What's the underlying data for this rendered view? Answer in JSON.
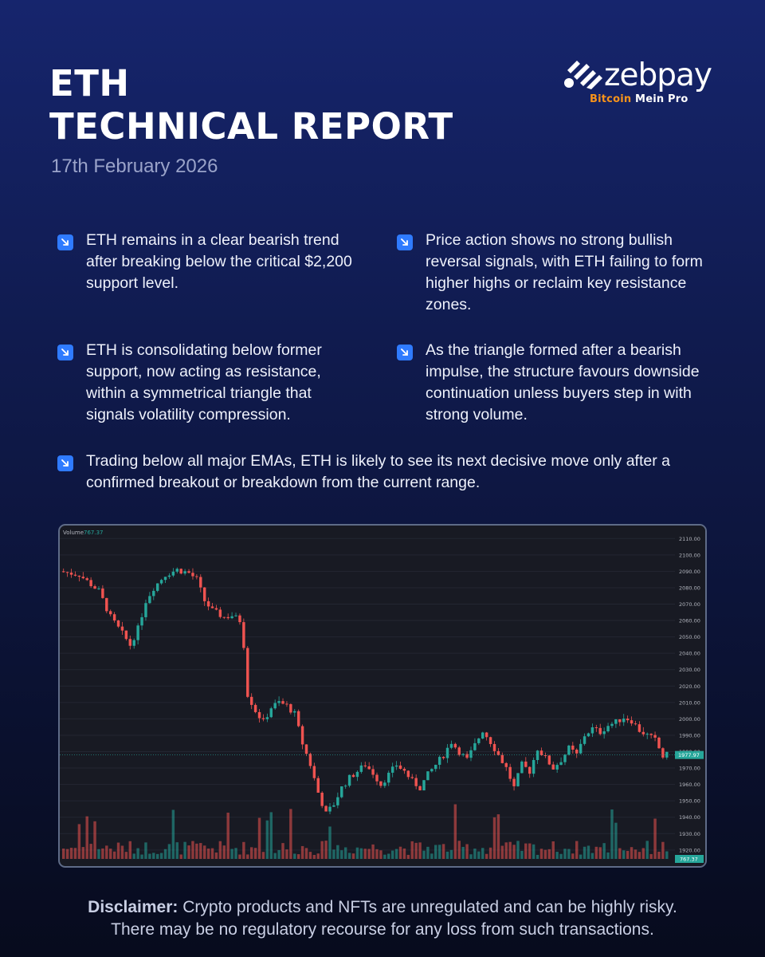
{
  "header": {
    "title_line1": "ETH",
    "title_line2": "TECHNICAL REPORT",
    "date": "17th February 2026"
  },
  "logo": {
    "wordmark": "zebpay",
    "tagline_prefix": "Bitcoin",
    "tagline_suffix": " Mein Pro"
  },
  "bullets": [
    {
      "icon": "arrow-down-right-icon",
      "text": "ETH remains in a clear bearish trend after breaking below the critical $2,200 support level."
    },
    {
      "icon": "arrow-down-right-icon",
      "text": "Price action shows no strong bullish reversal signals, with ETH failing to form higher highs or reclaim key resistance zones."
    },
    {
      "icon": "arrow-down-right-icon",
      "text": "ETH is consolidating below former support, now acting as resistance, within a symmetrical triangle that signals volatility compression."
    },
    {
      "icon": "arrow-down-right-icon",
      "text": "As the triangle formed after a bearish impulse, the structure favours downside continuation unless buyers step in with strong volume."
    },
    {
      "icon": "arrow-down-right-icon",
      "text": "Trading below all major EMAs, ETH is likely to see its next decisive move only after a confirmed breakout or breakdown from the current range."
    }
  ],
  "disclaimer": {
    "label": "Disclaimer:",
    "line1": " Crypto products and NFTs are unregulated and can be highly risky.",
    "line2": "There may be no regulatory recourse for any loss from such transactions."
  },
  "colors": {
    "up": "#26a69a",
    "down": "#ef5350",
    "accent": "#2f7bff",
    "orange": "#f7931a"
  },
  "chart_data": {
    "type": "candlestick",
    "y_ticks": [
      "2110.00",
      "2100.00",
      "2090.00",
      "2080.00",
      "2070.00",
      "2060.00",
      "2050.00",
      "2040.00",
      "2030.00",
      "2020.00",
      "2010.00",
      "2000.00",
      "1990.00",
      "1980.00",
      "1970.00",
      "1960.00",
      "1950.00",
      "1940.00",
      "1930.00",
      "1920.00"
    ],
    "ylim": [
      1917,
      2115
    ],
    "current_price": 1977.97,
    "current_price_label": "1977.97",
    "volume_label": "Volume",
    "volume_value": "767.37",
    "volume_badge": "767.37",
    "price_path": [
      [
        0,
        2090
      ],
      [
        5,
        2088
      ],
      [
        10,
        2078
      ],
      [
        13,
        2062
      ],
      [
        16,
        2052
      ],
      [
        18,
        2045
      ],
      [
        20,
        2055
      ],
      [
        22,
        2072
      ],
      [
        24,
        2080
      ],
      [
        27,
        2088
      ],
      [
        30,
        2091
      ],
      [
        33,
        2089
      ],
      [
        35,
        2085
      ],
      [
        37,
        2072
      ],
      [
        39,
        2066
      ],
      [
        42,
        2062
      ],
      [
        44,
        2063
      ],
      [
        46,
        2060
      ],
      [
        47,
        2045
      ],
      [
        48,
        2015
      ],
      [
        50,
        2005
      ],
      [
        52,
        1998
      ],
      [
        54,
        2007
      ],
      [
        56,
        2010
      ],
      [
        58,
        2008
      ],
      [
        60,
        2003
      ],
      [
        62,
        1985
      ],
      [
        64,
        1972
      ],
      [
        66,
        1955
      ],
      [
        68,
        1942
      ],
      [
        70,
        1948
      ],
      [
        72,
        1958
      ],
      [
        74,
        1964
      ],
      [
        76,
        1968
      ],
      [
        78,
        1972
      ],
      [
        80,
        1967
      ],
      [
        82,
        1960
      ],
      [
        84,
        1966
      ],
      [
        86,
        1972
      ],
      [
        88,
        1968
      ],
      [
        90,
        1962
      ],
      [
        92,
        1958
      ],
      [
        94,
        1966
      ],
      [
        96,
        1972
      ],
      [
        98,
        1978
      ],
      [
        100,
        1986
      ],
      [
        102,
        1980
      ],
      [
        104,
        1975
      ],
      [
        106,
        1984
      ],
      [
        108,
        1993
      ],
      [
        110,
        1986
      ],
      [
        112,
        1978
      ],
      [
        114,
        1970
      ],
      [
        116,
        1958
      ],
      [
        118,
        1972
      ],
      [
        120,
        1968
      ],
      [
        122,
        1982
      ],
      [
        124,
        1976
      ],
      [
        126,
        1970
      ],
      [
        128,
        1975
      ],
      [
        130,
        1982
      ],
      [
        132,
        1978
      ],
      [
        134,
        1990
      ],
      [
        136,
        1994
      ],
      [
        138,
        1992
      ],
      [
        140,
        1996
      ],
      [
        142,
        1998
      ],
      [
        144,
        2001
      ],
      [
        146,
        1999
      ],
      [
        148,
        1993
      ],
      [
        150,
        1990
      ],
      [
        152,
        1987
      ],
      [
        154,
        1977
      ],
      [
        155,
        1978
      ]
    ]
  }
}
